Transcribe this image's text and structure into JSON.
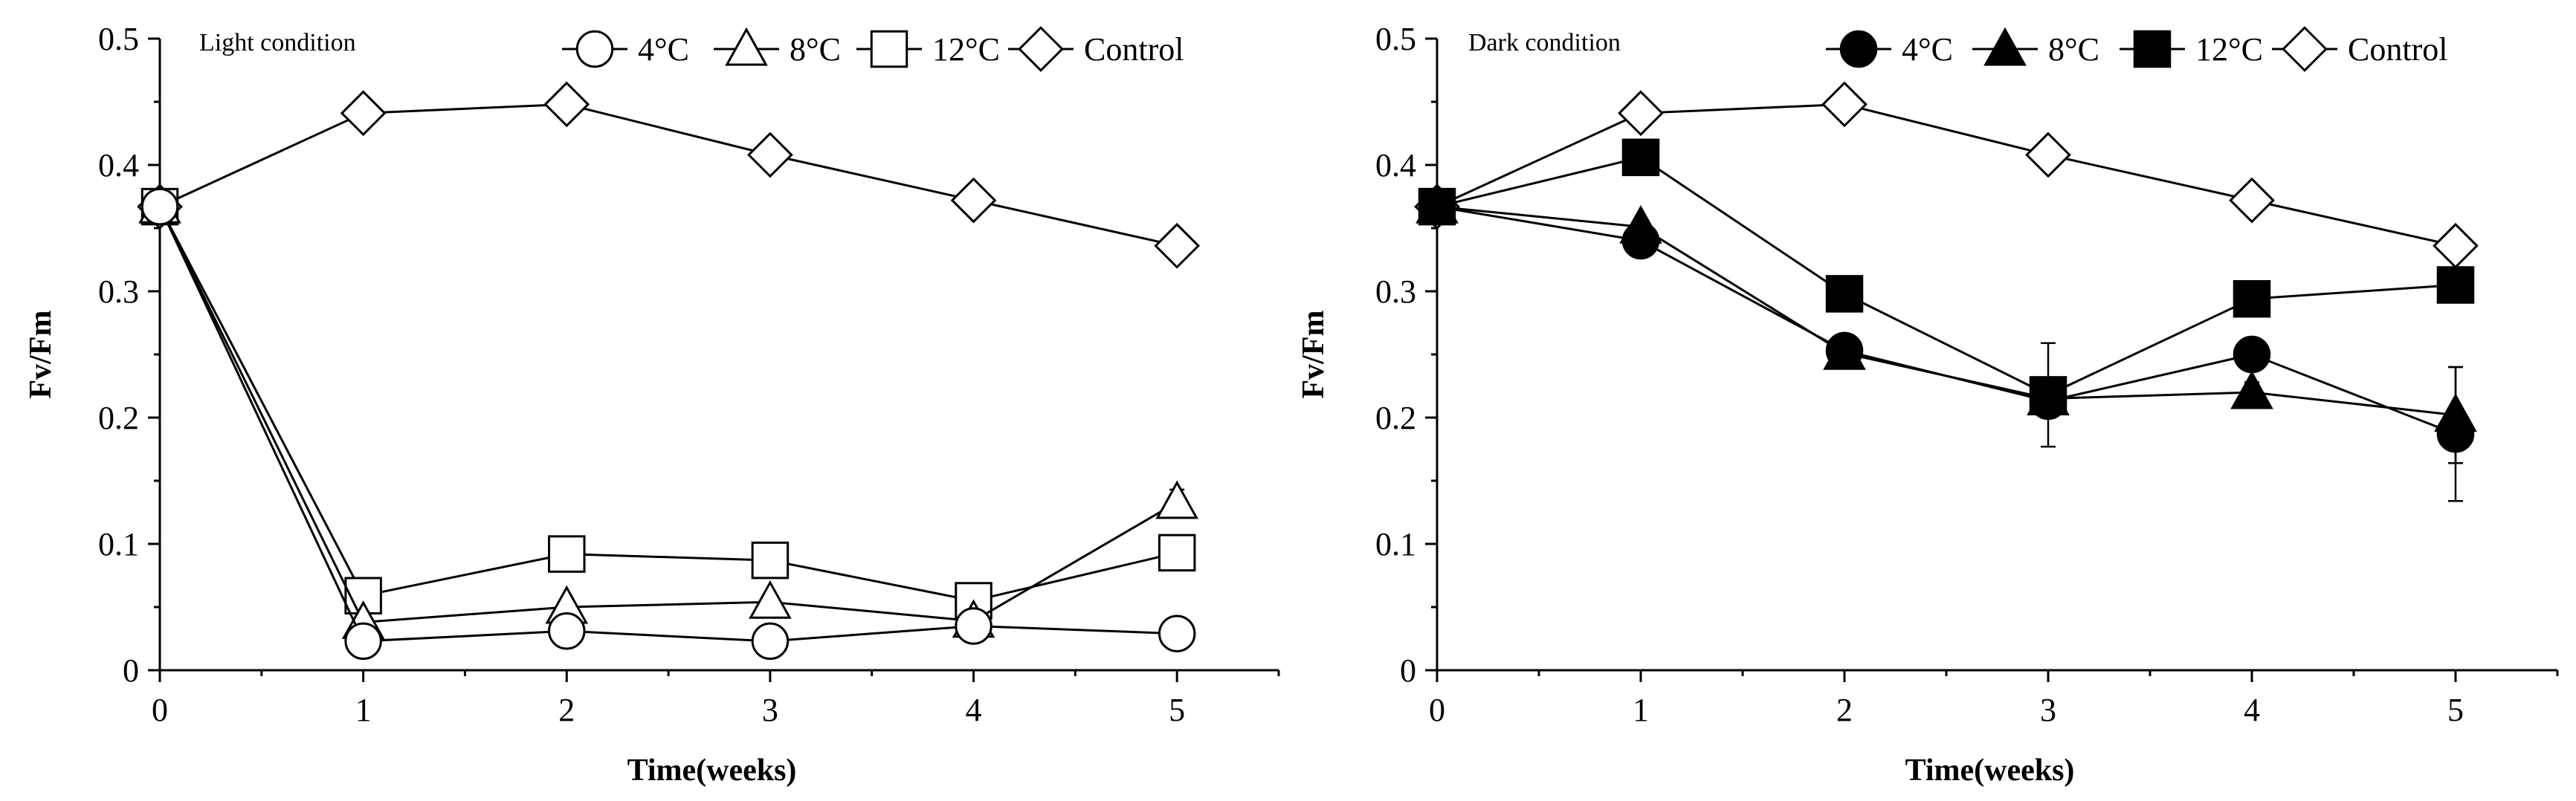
{
  "chart_data": [
    {
      "type": "line",
      "title": "Light condition",
      "xlabel": "Time(weeks)",
      "ylabel": "Fv/Fm",
      "xlim": [
        0,
        5.5
      ],
      "ylim": [
        0,
        0.5
      ],
      "x_ticks": [
        0,
        1,
        2,
        3,
        4,
        5
      ],
      "x_tick_labels": [
        "0",
        "1",
        "2",
        "3",
        "4",
        "5"
      ],
      "y_ticks": [
        0,
        0.1,
        0.2,
        0.3,
        0.4,
        0.5
      ],
      "y_tick_labels": [
        "0",
        "0.1",
        "0.2",
        "0.3",
        "0.4",
        "0.5"
      ],
      "legend_position": "top-right",
      "x": [
        0,
        1,
        2,
        3,
        4,
        5
      ],
      "series": [
        {
          "name": "4°C",
          "marker": "circle",
          "filled": false,
          "values": [
            0.367,
            0.023,
            0.031,
            0.023,
            0.035,
            0.029
          ],
          "errors": [
            0,
            0,
            0,
            0,
            0,
            0.012
          ]
        },
        {
          "name": "8°C",
          "marker": "triangle",
          "filled": false,
          "values": [
            0.367,
            0.038,
            0.05,
            0.054,
            0.039,
            0.133
          ],
          "errors": [
            0,
            0,
            0,
            0,
            0,
            0.01
          ]
        },
        {
          "name": "12°C",
          "marker": "square",
          "filled": false,
          "values": [
            0.367,
            0.059,
            0.092,
            0.087,
            0.055,
            0.093
          ],
          "errors": [
            0,
            0,
            0,
            0,
            0,
            0
          ]
        },
        {
          "name": "Control",
          "marker": "diamond",
          "filled": false,
          "values": [
            0.367,
            0.441,
            0.448,
            0.408,
            0.372,
            0.336
          ],
          "errors": [
            0,
            0,
            0,
            0.009,
            0.008,
            0.01
          ]
        }
      ]
    },
    {
      "type": "line",
      "title": "Dark condition",
      "xlabel": "Time(weeks)",
      "ylabel": "Fv/Fm",
      "xlim": [
        0,
        5.5
      ],
      "ylim": [
        0,
        0.5
      ],
      "x_ticks": [
        0,
        1,
        2,
        3,
        4,
        5
      ],
      "x_tick_labels": [
        "0",
        "1",
        "2",
        "3",
        "4",
        "5"
      ],
      "y_ticks": [
        0,
        0.1,
        0.2,
        0.3,
        0.4,
        0.5
      ],
      "y_tick_labels": [
        "0",
        "0.1",
        "0.2",
        "0.3",
        "0.4",
        "0.5"
      ],
      "legend_position": "top-right",
      "x": [
        0,
        1,
        2,
        3,
        4,
        5
      ],
      "series": [
        {
          "name": "4°C",
          "marker": "circle",
          "filled": true,
          "values": [
            0.367,
            0.34,
            0.253,
            0.213,
            0.25,
            0.187
          ],
          "errors": [
            0,
            0,
            0,
            0,
            0.012,
            0.053
          ]
        },
        {
          "name": "8°C",
          "marker": "triangle",
          "filled": true,
          "values": [
            0.367,
            0.351,
            0.251,
            0.215,
            0.22,
            0.202
          ],
          "errors": [
            0,
            0,
            0,
            0,
            0.008,
            0.038
          ]
        },
        {
          "name": "12°C",
          "marker": "square",
          "filled": true,
          "values": [
            0.367,
            0.406,
            0.298,
            0.218,
            0.294,
            0.305
          ],
          "errors": [
            0,
            0,
            0,
            0.041,
            0,
            0
          ]
        },
        {
          "name": "Control",
          "marker": "diamond",
          "filled": false,
          "values": [
            0.367,
            0.441,
            0.448,
            0.408,
            0.372,
            0.336
          ],
          "errors": [
            0,
            0,
            0,
            0.009,
            0.008,
            0.01
          ]
        }
      ]
    }
  ]
}
